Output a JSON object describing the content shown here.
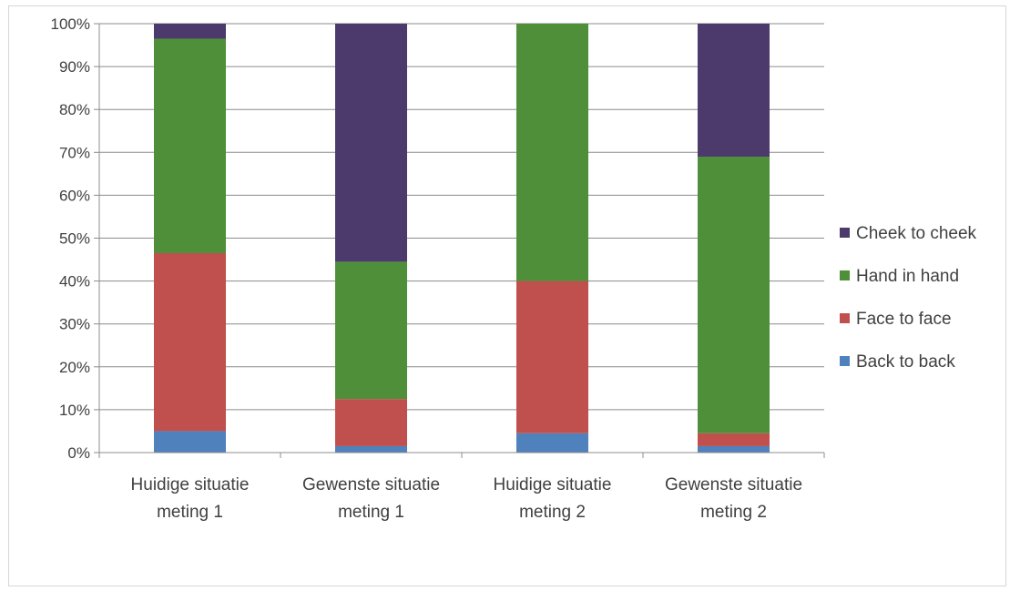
{
  "chart_data": {
    "type": "bar",
    "stacked": true,
    "percent_stacked": true,
    "categories": [
      [
        "Huidige situatie",
        "meting 1"
      ],
      [
        "Gewenste situatie",
        "meting 1"
      ],
      [
        "Huidige situatie",
        "meting 2"
      ],
      [
        "Gewenste situatie",
        "meting 2"
      ]
    ],
    "series": [
      {
        "name": "Back to back",
        "color": "#4f81bd",
        "values": [
          5,
          1.5,
          4.5,
          1.5
        ]
      },
      {
        "name": "Face to face",
        "color": "#c0504d",
        "values": [
          41.5,
          11,
          35.5,
          3
        ]
      },
      {
        "name": "Hand in hand",
        "color": "#4f8f3a",
        "values": [
          50,
          32,
          60,
          64.5
        ]
      },
      {
        "name": "Cheek to cheek",
        "color": "#4b3a6b",
        "values": [
          3.5,
          55.5,
          0,
          31
        ]
      }
    ],
    "y_ticks": [
      "0%",
      "10%",
      "20%",
      "30%",
      "40%",
      "50%",
      "60%",
      "70%",
      "80%",
      "90%",
      "100%"
    ],
    "ylim": [
      0,
      100
    ],
    "grid": true,
    "legend_position": "right",
    "legend_order": [
      "Cheek to cheek",
      "Hand in hand",
      "Face to face",
      "Back to back"
    ],
    "title": "",
    "xlabel": "",
    "ylabel": ""
  }
}
